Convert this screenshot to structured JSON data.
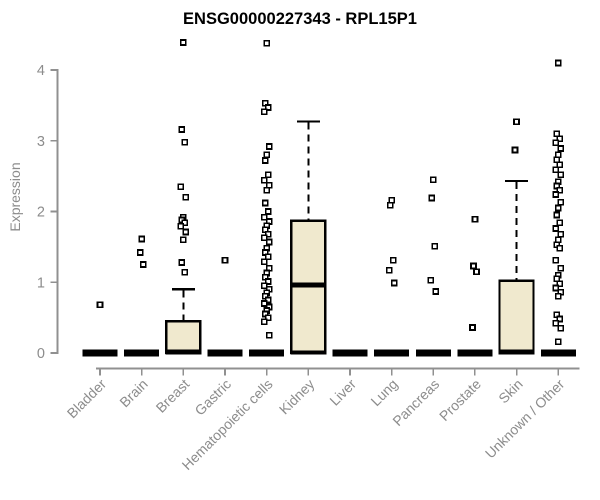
{
  "title": "ENSG00000227343 - RPL15P1",
  "colors": {
    "background": "#ffffff",
    "title_text": "#000000",
    "axis_line": "#909090",
    "axis_text": "#8c8c8c",
    "box_fill": "#f0e9ce",
    "box_border": "#000000",
    "median": "#000000",
    "whisker": "#000000",
    "outlier_fill": "#ffffff",
    "outlier_border": "#000000"
  },
  "chart_data": {
    "type": "boxplot",
    "title": "ENSG00000227343 - RPL15P1",
    "xlabel": "",
    "ylabel": "Expression",
    "ylim": [
      0,
      4
    ],
    "yticks": [
      0,
      1,
      2,
      3,
      4
    ],
    "grid": false,
    "legend": false,
    "categories": [
      "Bladder",
      "Brain",
      "Breast",
      "Gastric",
      "Hematopoietic cells",
      "Kidney",
      "Liver",
      "Lung",
      "Pancreas",
      "Prostate",
      "Skin",
      "Unknown / Other"
    ],
    "series": [
      {
        "name": "Bladder",
        "q1": 0,
        "median": 0,
        "q3": 0,
        "whisker_low": 0,
        "whisker_high": 0,
        "outliers": [
          0.68
        ]
      },
      {
        "name": "Brain",
        "q1": 0,
        "median": 0,
        "q3": 0,
        "whisker_low": 0,
        "whisker_high": 0,
        "outliers": [
          1.61,
          1.42,
          1.25
        ]
      },
      {
        "name": "Breast",
        "q1": 0,
        "median": 0,
        "q3": 0.45,
        "whisker_low": 0,
        "whisker_high": 0.9,
        "outliers": [
          4.39,
          3.16,
          2.98,
          2.35,
          2.2,
          1.92,
          1.88,
          1.84,
          1.79,
          1.71,
          1.6,
          1.28,
          1.14
        ]
      },
      {
        "name": "Gastric",
        "q1": 0,
        "median": 0,
        "q3": 0,
        "whisker_low": 0,
        "whisker_high": 0,
        "outliers": [
          1.31
        ]
      },
      {
        "name": "Hematopoietic cells",
        "q1": 0,
        "median": 0,
        "q3": 0,
        "whisker_low": 0,
        "whisker_high": 0,
        "outliers": [
          4.38,
          3.53,
          3.47,
          3.41,
          2.92,
          2.8,
          2.72,
          2.52,
          2.44,
          2.37,
          2.3,
          2.12,
          2.0,
          1.92,
          1.86,
          1.8,
          1.74,
          1.68,
          1.63,
          1.57,
          1.48,
          1.42,
          1.36,
          1.29,
          1.2,
          1.13,
          1.07,
          1.01,
          0.95,
          0.9,
          0.85,
          0.8,
          0.75,
          0.7,
          0.65,
          0.6,
          0.55,
          0.5,
          0.44,
          0.25
        ]
      },
      {
        "name": "Kidney",
        "q1": 0,
        "median": 0.95,
        "q3": 1.87,
        "whisker_low": 0,
        "whisker_high": 3.27,
        "outliers": []
      },
      {
        "name": "Liver",
        "q1": 0,
        "median": 0,
        "q3": 0,
        "whisker_low": 0,
        "whisker_high": 0,
        "outliers": []
      },
      {
        "name": "Lung",
        "q1": 0,
        "median": 0,
        "q3": 0,
        "whisker_low": 0,
        "whisker_high": 0,
        "outliers": [
          2.16,
          2.09,
          1.31,
          1.17,
          0.99
        ]
      },
      {
        "name": "Pancreas",
        "q1": 0,
        "median": 0,
        "q3": 0,
        "whisker_low": 0,
        "whisker_high": 0,
        "outliers": [
          2.45,
          2.19,
          1.51,
          1.03,
          0.87
        ]
      },
      {
        "name": "Prostate",
        "q1": 0,
        "median": 0,
        "q3": 0,
        "whisker_low": 0,
        "whisker_high": 0,
        "outliers": [
          1.89,
          1.23,
          1.15,
          0.36
        ]
      },
      {
        "name": "Skin",
        "q1": 0,
        "median": 0,
        "q3": 1.02,
        "whisker_low": 0,
        "whisker_high": 2.43,
        "outliers": [
          3.27,
          2.87
        ]
      },
      {
        "name": "Unknown / Other",
        "q1": 0,
        "median": 0,
        "q3": 0,
        "whisker_low": 0,
        "whisker_high": 0,
        "outliers": [
          4.1,
          3.1,
          3.03,
          2.97,
          2.89,
          2.8,
          2.73,
          2.66,
          2.59,
          2.52,
          2.42,
          2.36,
          2.3,
          2.24,
          2.13,
          2.05,
          1.95,
          1.84,
          1.76,
          1.68,
          1.6,
          1.53,
          1.48,
          1.31,
          1.2,
          1.1,
          1.05,
          0.98,
          0.92,
          0.86,
          0.8,
          0.54,
          0.48,
          0.42,
          0.35,
          0.16
        ]
      }
    ]
  }
}
